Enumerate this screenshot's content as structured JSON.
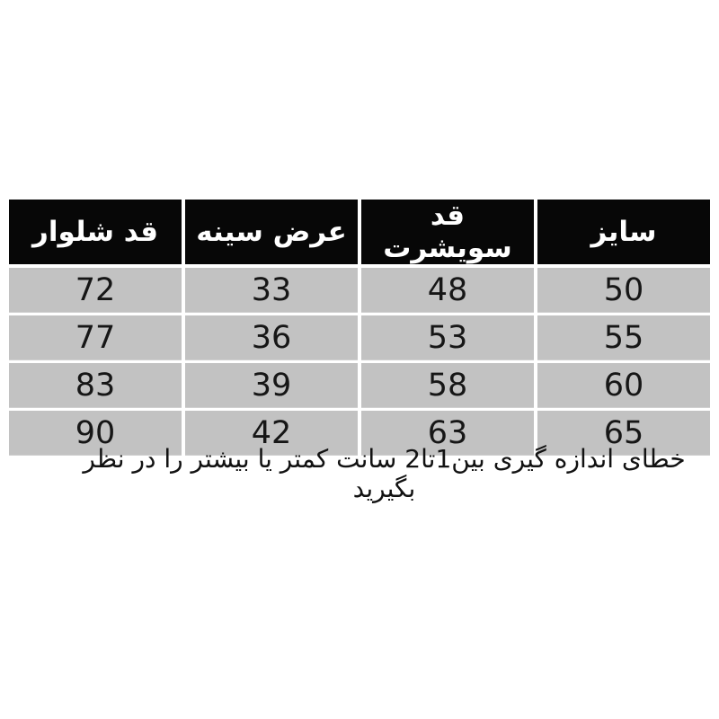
{
  "chart_data": {
    "type": "table",
    "direction": "rtl",
    "headers": [
      "سایز",
      "قد سویشرت",
      "عرض سینه",
      "قد شلوار"
    ],
    "rows": [
      [
        50,
        48,
        33,
        72
      ],
      [
        55,
        53,
        36,
        77
      ],
      [
        60,
        58,
        39,
        83
      ],
      [
        65,
        63,
        42,
        90
      ]
    ],
    "note": "خطای اندازه گیری بین1تا2 سانت کمتر یا بیشتر را در نظر بگیرید"
  },
  "colors": {
    "header_bg": "#070707",
    "header_text": "#ffffff",
    "cell_bg": "#c2c2c2",
    "page_bg": "#ffffff",
    "body_text": "#161616"
  }
}
